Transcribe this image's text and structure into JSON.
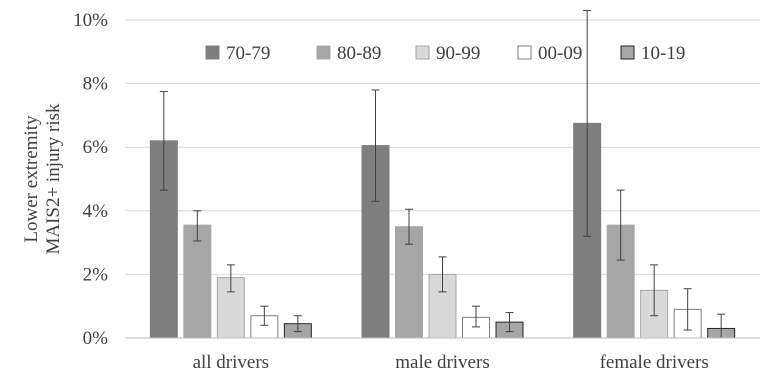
{
  "chart_data": {
    "type": "bar",
    "title": "",
    "xlabel": "",
    "ylabel_lines": [
      "Lower extremity",
      "MAIS2+ injury risk"
    ],
    "ylim": [
      0,
      10
    ],
    "y_ticks": [
      0,
      2,
      4,
      6,
      8,
      10
    ],
    "y_tick_labels": [
      "0%",
      "2%",
      "4%",
      "6%",
      "8%",
      "10%"
    ],
    "categories": [
      "all drivers",
      "male drivers",
      "female drivers"
    ],
    "grid": true,
    "legend_position": "top-center",
    "series": [
      {
        "name": "70-79",
        "color": "#7f7f7f",
        "stroke": "#7f7f7f",
        "values": [
          6.2,
          6.05,
          6.75
        ],
        "err_low": [
          4.65,
          4.3,
          3.2
        ],
        "err_high": [
          7.75,
          7.8,
          10.3
        ]
      },
      {
        "name": "80-89",
        "color": "#a6a6a6",
        "stroke": "#a6a6a6",
        "values": [
          3.55,
          3.5,
          3.55
        ],
        "err_low": [
          3.05,
          2.95,
          2.45
        ],
        "err_high": [
          4.0,
          4.05,
          4.65
        ]
      },
      {
        "name": "90-99",
        "color": "#d9d9d9",
        "stroke": "#a6a6a6",
        "values": [
          1.9,
          2.0,
          1.5
        ],
        "err_low": [
          1.45,
          1.45,
          0.7
        ],
        "err_high": [
          2.3,
          2.55,
          2.3
        ]
      },
      {
        "name": "00-09",
        "color": "#ffffff",
        "stroke": "#7f7f7f",
        "values": [
          0.7,
          0.65,
          0.9
        ],
        "err_low": [
          0.4,
          0.35,
          0.25
        ],
        "err_high": [
          1.0,
          1.0,
          1.55
        ]
      },
      {
        "name": "10-19",
        "color": "#a6a6a6",
        "stroke": "#262626",
        "values": [
          0.45,
          0.5,
          0.3
        ],
        "err_low": [
          0.2,
          0.2,
          0.0
        ],
        "err_high": [
          0.7,
          0.8,
          0.75
        ]
      }
    ]
  }
}
